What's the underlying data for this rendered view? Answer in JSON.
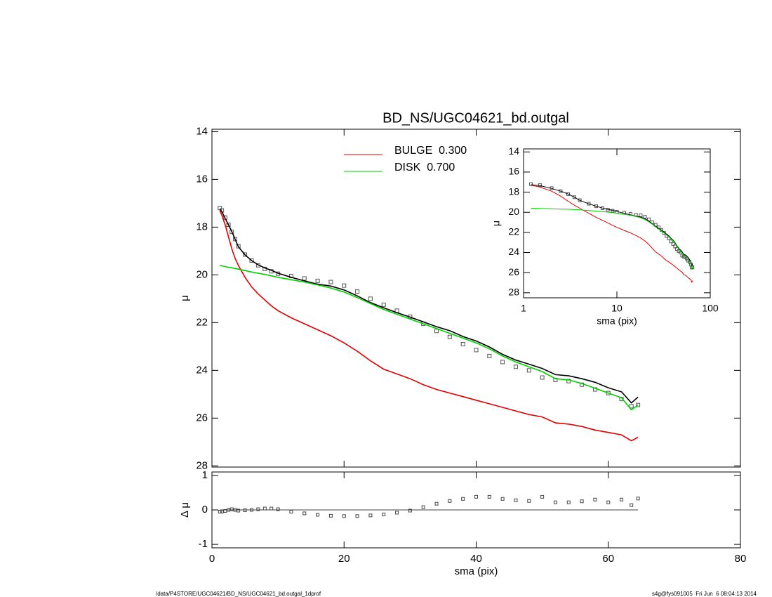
{
  "chart_data": [
    {
      "type": "line",
      "title": "BD_NS/UGC04621_bd.outgal",
      "ylabel": "μ",
      "x": [
        1.2,
        1.5,
        2,
        2.5,
        3,
        3.5,
        4,
        5,
        6,
        7,
        8,
        9,
        10,
        12,
        14,
        16,
        18,
        20,
        22,
        24,
        26,
        28,
        30,
        32,
        34,
        36,
        38,
        40,
        42,
        44,
        46,
        48,
        50,
        52,
        54,
        56,
        58,
        60,
        62,
        63.5,
        64.5
      ],
      "xlim": [
        0,
        80
      ],
      "xticks": [
        0,
        20,
        40,
        60,
        80
      ],
      "ylim": [
        13.9,
        28.05
      ],
      "yticks": [
        14,
        16,
        18,
        20,
        22,
        24,
        26,
        28
      ],
      "y_reversed": true,
      "series": [
        {
          "style": "markers",
          "color": "#555555",
          "values": [
            17.2,
            17.3,
            17.6,
            17.9,
            18.2,
            18.5,
            18.8,
            19.15,
            19.4,
            19.6,
            19.75,
            19.85,
            19.95,
            20.05,
            20.15,
            20.25,
            20.3,
            20.45,
            20.7,
            21.0,
            21.25,
            21.5,
            21.75,
            22.05,
            22.35,
            22.6,
            22.9,
            23.15,
            23.4,
            23.65,
            23.85,
            24.0,
            24.3,
            24.4,
            24.45,
            24.6,
            24.8,
            24.95,
            25.2,
            25.5,
            25.45
          ]
        },
        {
          "style": "line",
          "color": "#000000",
          "values": [
            17.25,
            17.35,
            17.63,
            17.9,
            18.18,
            18.5,
            18.82,
            19.16,
            19.4,
            19.58,
            19.71,
            19.81,
            19.93,
            20.1,
            20.25,
            20.39,
            20.47,
            20.63,
            20.88,
            21.16,
            21.38,
            21.58,
            21.77,
            21.97,
            22.17,
            22.34,
            22.58,
            22.77,
            23.02,
            23.33,
            23.57,
            23.74,
            23.92,
            24.18,
            24.23,
            24.35,
            24.5,
            24.73,
            24.9,
            25.36,
            25.12
          ]
        },
        {
          "style": "line",
          "name": "BULGE  0.300",
          "color": "#e00000",
          "values": [
            17.3,
            17.5,
            17.9,
            18.4,
            18.9,
            19.3,
            19.6,
            20.1,
            20.5,
            20.8,
            21.05,
            21.3,
            21.5,
            21.8,
            22.05,
            22.3,
            22.55,
            22.85,
            23.2,
            23.6,
            23.95,
            24.15,
            24.35,
            24.6,
            24.8,
            24.95,
            25.1,
            25.25,
            25.4,
            25.55,
            25.7,
            25.85,
            25.95,
            26.2,
            26.25,
            26.35,
            26.5,
            26.6,
            26.7,
            26.95,
            26.8
          ]
        },
        {
          "style": "line",
          "name": "DISK  0.700",
          "color": "#00d000",
          "values": [
            19.6,
            19.62,
            19.65,
            19.68,
            19.7,
            19.73,
            19.76,
            19.82,
            19.88,
            19.93,
            19.98,
            20.04,
            20.1,
            20.2,
            20.3,
            20.42,
            20.55,
            20.72,
            20.95,
            21.2,
            21.45,
            21.65,
            21.85,
            22.05,
            22.25,
            22.45,
            22.65,
            22.85,
            23.1,
            23.4,
            23.65,
            23.85,
            24.05,
            24.35,
            24.4,
            24.55,
            24.75,
            24.95,
            25.15,
            25.65,
            25.45
          ]
        }
      ]
    },
    {
      "type": "scatter",
      "xlabel": "sma (pix)",
      "ylabel": "Δ μ",
      "xlim": [
        0,
        80
      ],
      "xticks": [
        0,
        20,
        40,
        60,
        80
      ],
      "ylim": [
        -1.1,
        1.1
      ],
      "yticks": [
        -1,
        0,
        1
      ],
      "values": [
        -0.05,
        -0.05,
        -0.03,
        0.0,
        0.02,
        0.0,
        -0.02,
        -0.01,
        0.0,
        0.02,
        0.04,
        0.04,
        0.02,
        -0.05,
        -0.1,
        -0.14,
        -0.17,
        -0.18,
        -0.18,
        -0.16,
        -0.13,
        -0.08,
        -0.02,
        0.08,
        0.18,
        0.26,
        0.32,
        0.38,
        0.38,
        0.32,
        0.28,
        0.26,
        0.38,
        0.22,
        0.22,
        0.25,
        0.3,
        0.22,
        0.3,
        0.14,
        0.33
      ]
    },
    {
      "type": "inset",
      "xlabel": "sma (pix)",
      "ylabel": "μ",
      "log_x": true,
      "xlim": [
        1,
        100
      ],
      "xticks": [
        1,
        10,
        100
      ],
      "ylim": [
        13.7,
        28.5
      ],
      "yticks": [
        14,
        16,
        18,
        20,
        22,
        24,
        26,
        28
      ],
      "y_reversed": true
    }
  ],
  "footer": {
    "left": "/data/P4STORE/UGC04621/BD_NS/UGC04621_bd.outgal_1dprof",
    "right": "s4g@fys091005  Fri Jun  6 08:04:13 2014"
  }
}
